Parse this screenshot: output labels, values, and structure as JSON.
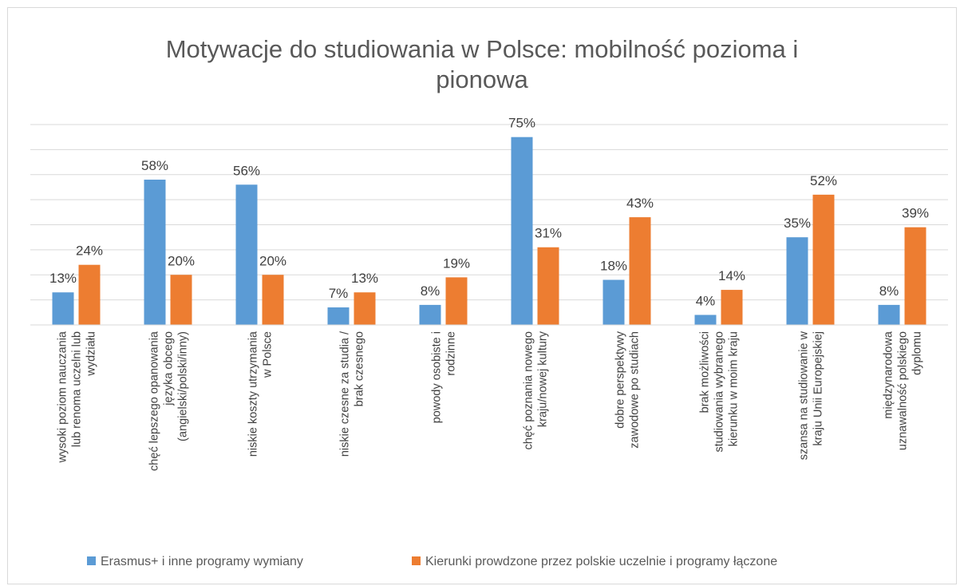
{
  "chart_data": {
    "type": "bar",
    "title": "Motywacje do studiowania w Polsce: mobilność pozioma i pionowa",
    "categories": [
      "wysoki poziom nauczania lub renoma uczelni lub wydziału",
      "chęć lepszego opanowania języka obcego (angielski/polski/inny)",
      "niskie koszty utrzymania w Polsce",
      "niskie czesne za studia / brak czesnego",
      "powody osobiste i rodzinne",
      "chęć poznania nowego kraju/nowej kultury",
      "dobre perspektywy zawodowe po studiach",
      "brak możliwości studiowania wybranego kierunku w moim kraju",
      "szansa na studiowanie w kraju Unii Europejskiej",
      "międzynarodowa uznawalność polskiego dyplomu"
    ],
    "series": [
      {
        "name": "Erasmus+ i inne programy wymiany",
        "color": "#5b9bd5",
        "values": [
          13,
          58,
          56,
          7,
          8,
          75,
          18,
          4,
          35,
          8
        ],
        "value_labels": [
          "13%",
          "58%",
          "56%",
          "7%",
          "8%",
          "75%",
          "18%",
          "4%",
          "35%",
          "8%"
        ]
      },
      {
        "name": "Kierunki prowdzone przez polskie uczelnie i programy łączone",
        "color": "#ed7d31",
        "values": [
          24,
          20,
          20,
          13,
          19,
          31,
          43,
          14,
          52,
          39
        ],
        "value_labels": [
          "24%",
          "20%",
          "20%",
          "13%",
          "19%",
          "31%",
          "43%",
          "14%",
          "52%",
          "39%"
        ]
      }
    ],
    "ylim": [
      0,
      80
    ],
    "yticks": [
      0,
      10,
      20,
      30,
      40,
      50,
      60,
      70,
      80
    ],
    "grid": true,
    "legend": "bottom"
  }
}
